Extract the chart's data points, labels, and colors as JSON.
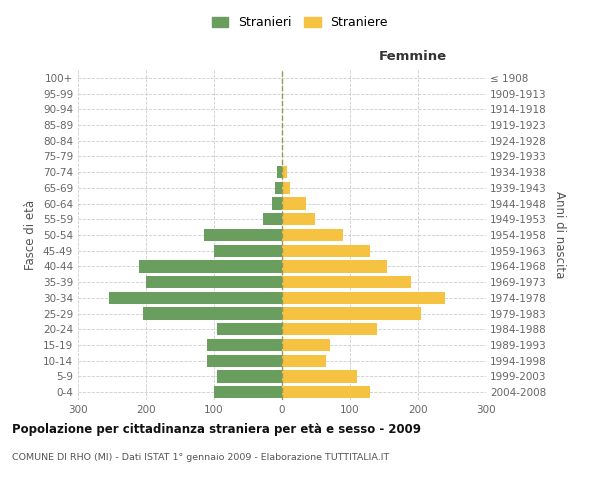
{
  "age_groups": [
    "0-4",
    "5-9",
    "10-14",
    "15-19",
    "20-24",
    "25-29",
    "30-34",
    "35-39",
    "40-44",
    "45-49",
    "50-54",
    "55-59",
    "60-64",
    "65-69",
    "70-74",
    "75-79",
    "80-84",
    "85-89",
    "90-94",
    "95-99",
    "100+"
  ],
  "birth_years": [
    "2004-2008",
    "1999-2003",
    "1994-1998",
    "1989-1993",
    "1984-1988",
    "1979-1983",
    "1974-1978",
    "1969-1973",
    "1964-1968",
    "1959-1963",
    "1954-1958",
    "1949-1953",
    "1944-1948",
    "1939-1943",
    "1934-1938",
    "1929-1933",
    "1924-1928",
    "1919-1923",
    "1914-1918",
    "1909-1913",
    "≤ 1908"
  ],
  "males": [
    100,
    95,
    110,
    110,
    95,
    205,
    255,
    200,
    210,
    100,
    115,
    28,
    14,
    10,
    8,
    0,
    0,
    0,
    0,
    0,
    0
  ],
  "females": [
    130,
    110,
    65,
    70,
    140,
    205,
    240,
    190,
    155,
    130,
    90,
    48,
    35,
    12,
    8,
    0,
    0,
    0,
    0,
    0,
    0
  ],
  "male_color": "#6a9e5f",
  "female_color": "#f5c242",
  "background_color": "#ffffff",
  "grid_color": "#cccccc",
  "title": "Popolazione per cittadinanza straniera per età e sesso - 2009",
  "subtitle": "COMUNE DI RHO (MI) - Dati ISTAT 1° gennaio 2009 - Elaborazione TUTTITALIA.IT",
  "ylabel_left": "Fasce di età",
  "ylabel_right": "Anni di nascita",
  "xlabel_right": "Femmine",
  "legend_male": "Stranieri",
  "legend_female": "Straniere",
  "xlim": 300,
  "dpi": 100,
  "figsize": [
    6.0,
    5.0
  ]
}
